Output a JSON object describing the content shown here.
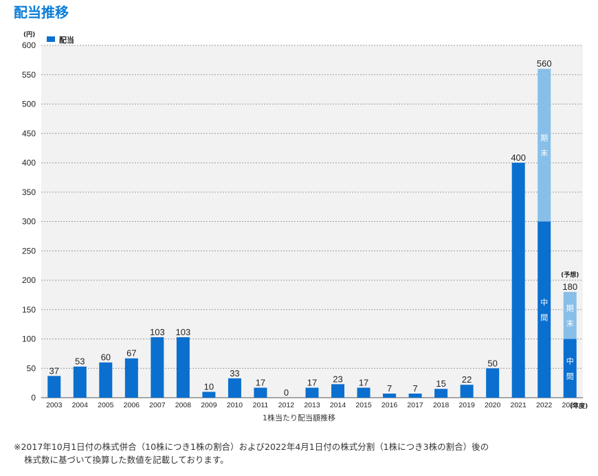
{
  "page": {
    "title": "配当推移",
    "caption": "1株当たり配当額推移",
    "note_line1": "※2017年10月1日付の株式併合（10株につき1株の割合）および2022年4月1日付の株式分割（1株につき3株の割合）後の",
    "note_line2": "株式数に基づいて換算した数値を記載しております。"
  },
  "colors": {
    "interim": "#0a6fcf",
    "final": "#88bfe8",
    "grid": "#9a9a9a",
    "plot_bg": "#f2f2f2",
    "title": "#0a7dd8"
  },
  "chart_data": {
    "type": "bar",
    "y_unit": "(円)",
    "x_unit": "(年度)",
    "ylim": [
      0,
      600
    ],
    "yticks": [
      0,
      50,
      100,
      150,
      200,
      250,
      300,
      350,
      400,
      450,
      500,
      550,
      600
    ],
    "grid": true,
    "legend": {
      "label": "配当",
      "position": "top-left"
    },
    "categories": [
      "2003",
      "2004",
      "2005",
      "2006",
      "2007",
      "2008",
      "2009",
      "2010",
      "2011",
      "2012",
      "2013",
      "2014",
      "2015",
      "2016",
      "2017",
      "2018",
      "2019",
      "2020",
      "2021",
      "2022",
      "2023"
    ],
    "values": [
      37,
      53,
      60,
      67,
      103,
      103,
      10,
      33,
      17,
      0,
      17,
      23,
      17,
      7,
      7,
      15,
      22,
      50,
      400,
      560,
      180
    ],
    "stacked": [
      {
        "category": "2022",
        "interim": 300,
        "final": 260,
        "interim_label": "中間",
        "final_label": "期末"
      },
      {
        "category": "2023",
        "interim": 100,
        "final": 80,
        "interim_label": "中間",
        "final_label": "期末",
        "note": "(予想)"
      }
    ]
  }
}
